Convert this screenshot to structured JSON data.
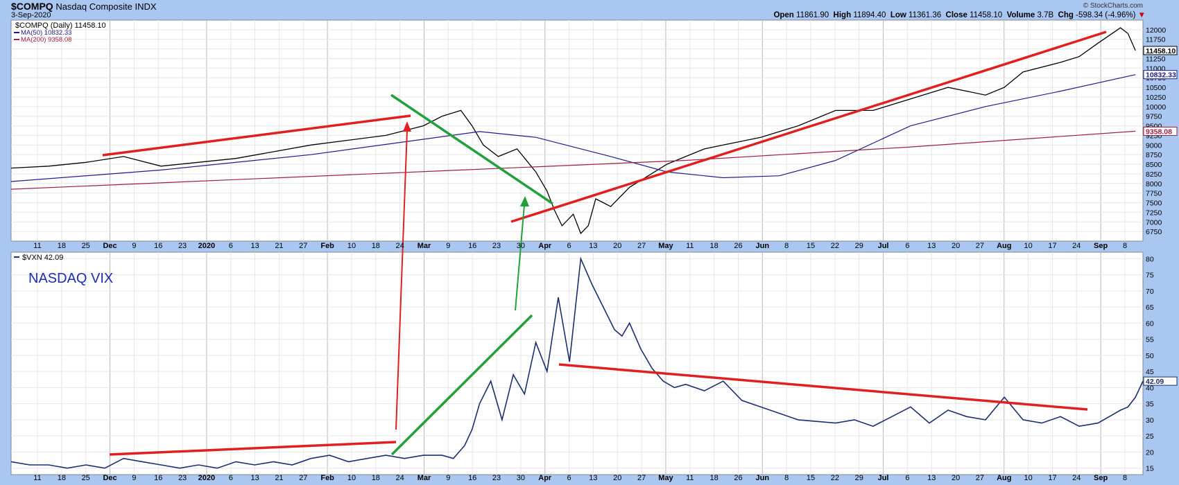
{
  "header": {
    "symbol": "$COMPQ",
    "name": "Nasdaq Composite",
    "exchange": "INDX",
    "date": "3-Sep-2020",
    "credit": "© StockCharts.com",
    "open_label": "Open",
    "open": "11861.90",
    "high_label": "High",
    "high": "11894.40",
    "low_label": "Low",
    "low": "11361.36",
    "close_label": "Close",
    "close": "11458.10",
    "volume_label": "Volume",
    "volume": "3.7B",
    "chg_label": "Chg",
    "chg": "-598.34 (-4.96%)"
  },
  "legend_top": {
    "main": "$COMPQ (Daily) 11458.10",
    "ma50": "MA(50) 10832.33",
    "ma200": "MA(200) 9358.08"
  },
  "legend_bottom": {
    "main": "$VXN 42.09",
    "annotation": "NASDAQ VIX"
  },
  "colors": {
    "background": "#a9c7f0",
    "price": "#000000",
    "ma50": "#1c1c8c",
    "ma200": "#a01e3c",
    "trend_red": "#e02020",
    "trend_green": "#22a03c",
    "vix_line": "#1a2e6e",
    "annotation": "#1c2cb8"
  },
  "x_labels": [
    "11",
    "18",
    "25",
    "Dec",
    "9",
    "16",
    "23",
    "2020",
    "6",
    "13",
    "21",
    "27",
    "Feb",
    "10",
    "18",
    "24",
    "Mar",
    "9",
    "16",
    "23",
    "30",
    "Apr",
    "6",
    "13",
    "20",
    "27",
    "May",
    "11",
    "18",
    "26",
    "Jun",
    "8",
    "15",
    "22",
    "29",
    "Jul",
    "6",
    "13",
    "20",
    "27",
    "Aug",
    "10",
    "17",
    "24",
    "Sep",
    "8"
  ],
  "chart_data": [
    {
      "type": "line",
      "title": "$COMPQ (Daily) 11458.10",
      "ylim": [
        6500,
        12250
      ],
      "y_ticks": [
        6750,
        7000,
        7250,
        7500,
        7750,
        8000,
        8250,
        8500,
        8750,
        9000,
        9250,
        9500,
        9750,
        10000,
        10250,
        10500,
        10750,
        11000,
        11250,
        11500,
        11750,
        12000
      ],
      "last_value_labels": [
        "11458.10",
        "10832.33",
        "9358.08"
      ],
      "x_range_days": [
        0,
        302
      ],
      "series": [
        {
          "name": "$COMPQ (Daily)",
          "x": [
            0,
            10,
            20,
            30,
            40,
            60,
            80,
            100,
            110,
            115,
            120,
            123,
            126,
            130,
            135,
            140,
            143,
            145,
            147,
            150,
            152,
            154,
            156,
            158,
            160,
            165,
            170,
            175,
            180,
            185,
            190,
            200,
            210,
            220,
            230,
            240,
            250,
            260,
            265,
            270,
            280,
            285,
            290,
            293,
            296,
            298,
            300
          ],
          "values": [
            8400,
            8450,
            8550,
            8700,
            8450,
            8650,
            9000,
            9250,
            9500,
            9750,
            9900,
            9500,
            9000,
            8700,
            8900,
            8300,
            7800,
            7300,
            6900,
            7200,
            6700,
            6900,
            7600,
            7500,
            7400,
            7900,
            8200,
            8500,
            8700,
            8900,
            9000,
            9200,
            9500,
            9900,
            9900,
            10200,
            10500,
            10300,
            10500,
            10900,
            11150,
            11300,
            11650,
            11850,
            12050,
            11900,
            11458
          ]
        },
        {
          "name": "MA(50)",
          "x": [
            0,
            40,
            80,
            110,
            125,
            140,
            160,
            175,
            190,
            205,
            220,
            240,
            260,
            280,
            300
          ],
          "values": [
            8050,
            8350,
            8750,
            9150,
            9350,
            9200,
            8700,
            8300,
            8150,
            8200,
            8600,
            9500,
            10000,
            10400,
            10832
          ]
        },
        {
          "name": "MA(200)",
          "x": [
            0,
            60,
            120,
            180,
            240,
            300
          ],
          "values": [
            7850,
            8100,
            8350,
            8600,
            8950,
            9358
          ]
        }
      ]
    },
    {
      "type": "line",
      "title": "$VXN 42.09",
      "ylim": [
        13,
        82
      ],
      "y_ticks": [
        15,
        20,
        25,
        30,
        35,
        40,
        45,
        50,
        55,
        60,
        65,
        70,
        75,
        80
      ],
      "last_value_labels": [
        "42.09"
      ],
      "x_range_days": [
        0,
        302
      ],
      "series": [
        {
          "name": "$VXN",
          "x": [
            0,
            5,
            10,
            15,
            20,
            25,
            30,
            35,
            40,
            45,
            50,
            55,
            60,
            65,
            70,
            75,
            80,
            85,
            90,
            95,
            100,
            105,
            110,
            115,
            118,
            121,
            123,
            125,
            128,
            131,
            134,
            137,
            140,
            143,
            146,
            149,
            152,
            155,
            158,
            161,
            163,
            165,
            168,
            171,
            174,
            177,
            180,
            185,
            190,
            195,
            200,
            210,
            220,
            225,
            230,
            240,
            245,
            250,
            255,
            260,
            265,
            270,
            275,
            280,
            285,
            290,
            293,
            296,
            298,
            300,
            302
          ],
          "values": [
            17,
            16,
            16,
            15,
            16,
            15,
            18,
            17,
            16,
            15,
            16,
            15,
            17,
            16,
            17,
            16,
            18,
            19,
            17,
            18,
            19,
            18,
            19,
            19,
            18,
            22,
            27,
            35,
            42,
            30,
            44,
            38,
            54,
            45,
            68,
            48,
            80,
            72,
            65,
            58,
            56,
            60,
            52,
            46,
            42,
            40,
            41,
            39,
            42,
            36,
            34,
            30,
            29,
            30,
            28,
            34,
            29,
            33,
            31,
            30,
            37,
            30,
            29,
            31,
            28,
            29,
            31,
            33,
            34,
            37,
            42
          ]
        }
      ]
    }
  ]
}
